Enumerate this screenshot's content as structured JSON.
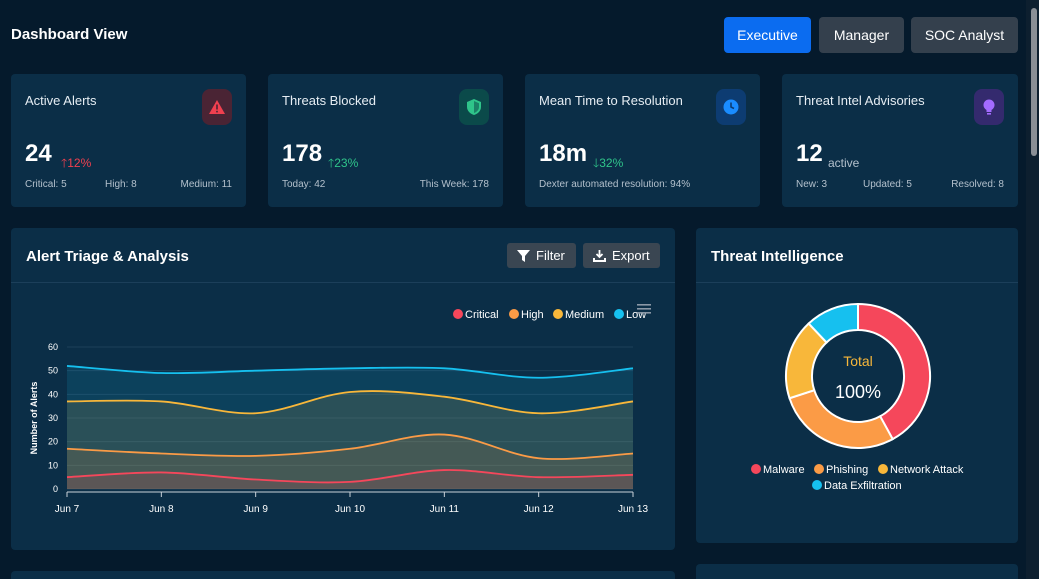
{
  "header": {
    "title": "Dashboard View",
    "roles": [
      "Executive",
      "Manager",
      "SOC Analyst"
    ],
    "active_role": "Executive"
  },
  "cards": [
    {
      "title": "Active Alerts",
      "value": "24",
      "trend": "12%",
      "trend_dir": "up",
      "trend_color": "#f0404f",
      "footer": [
        "Critical: 5",
        "High: 8",
        "Medium: 11"
      ]
    },
    {
      "title": "Threats Blocked",
      "value": "178",
      "trend": "23%",
      "trend_dir": "up",
      "trend_color": "#2fc48a",
      "footer": [
        "Today: 42",
        "This Week: 178"
      ]
    },
    {
      "title": "Mean Time to Resolution",
      "value": "18m",
      "trend": "32%",
      "trend_dir": "down",
      "trend_color": "#2fc48a",
      "footer": [
        "Dexter automated resolution: 94%"
      ]
    },
    {
      "title": "Threat Intel Advisories",
      "value": "12",
      "suffix": "active",
      "footer": [
        "New: 3",
        "Updated: 5",
        "Resolved: 8"
      ]
    }
  ],
  "triage": {
    "title": "Alert Triage & Analysis",
    "filter_label": "Filter",
    "export_label": "Export"
  },
  "intel": {
    "title": "Threat Intelligence",
    "center_label": "Total",
    "center_value": "100%"
  },
  "colors": {
    "critical": "#f5475b",
    "high": "#fb9b46",
    "medium": "#f8b73a",
    "low": "#16c0ef",
    "accent": "#0b6cf0"
  },
  "chart_data": [
    {
      "type": "area",
      "title": "",
      "xlabel": "",
      "ylabel": "Number of Alerts",
      "categories": [
        "Jun 7",
        "Jun 8",
        "Jun 9",
        "Jun 10",
        "Jun 11",
        "Jun 12",
        "Jun 13"
      ],
      "ylim": [
        0,
        60
      ],
      "yticks": [
        0,
        10,
        20,
        30,
        40,
        50,
        60
      ],
      "legend": "top-right",
      "series": [
        {
          "name": "Critical",
          "values": [
            5,
            7,
            4,
            3,
            8,
            5,
            6
          ]
        },
        {
          "name": "High",
          "values": [
            17,
            15,
            14,
            17,
            23,
            13,
            15
          ]
        },
        {
          "name": "Medium",
          "values": [
            37,
            37,
            32,
            41,
            39,
            32,
            37
          ]
        },
        {
          "name": "Low",
          "values": [
            52,
            49,
            50,
            51,
            51,
            47,
            51
          ]
        }
      ]
    },
    {
      "type": "pie",
      "title": "",
      "legend": "bottom",
      "labels": [
        "Malware",
        "Phishing",
        "Network Attack",
        "Data Exfiltration"
      ],
      "values": [
        42,
        28,
        18,
        12
      ]
    }
  ]
}
